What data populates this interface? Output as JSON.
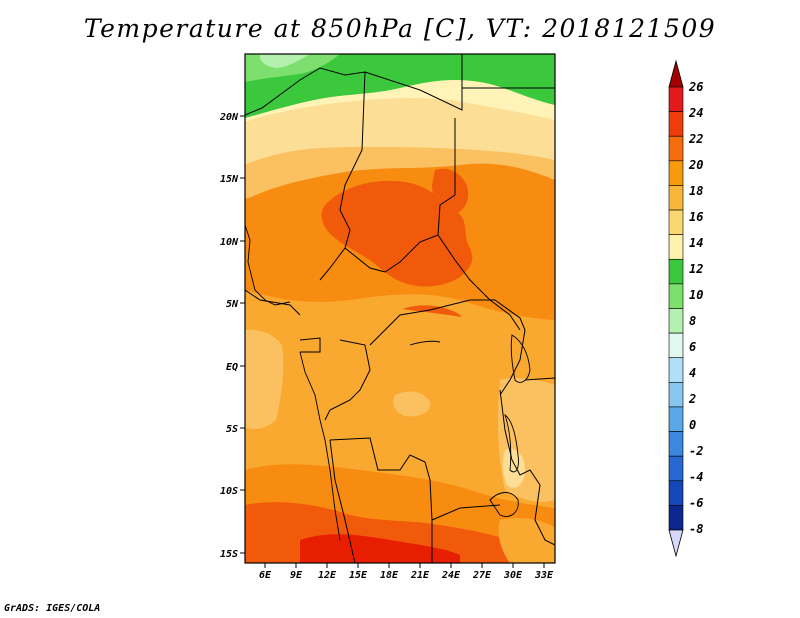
{
  "title": "Temperature at 850hPa [C], VT: 2018121509",
  "credit": "GrADS: IGES/COLA",
  "map": {
    "lat_labels": [
      "20N",
      "15N",
      "10N",
      "5N",
      "EQ",
      "5S",
      "10S",
      "15S"
    ],
    "lon_labels": [
      "6E",
      "9E",
      "12E",
      "15E",
      "18E",
      "21E",
      "24E",
      "27E",
      "30E",
      "33E"
    ]
  },
  "colorbar": {
    "labels": [
      "26",
      "24",
      "22",
      "20",
      "18",
      "16",
      "14",
      "12",
      "10",
      "8",
      "6",
      "4",
      "2",
      "0",
      "-2",
      "-4",
      "-6",
      "-8"
    ],
    "colors": [
      "#a50000",
      "#e31a1c",
      "#f03c0c",
      "#f46d0c",
      "#f79a0c",
      "#f8b63a",
      "#fbd774",
      "#fdf1ad",
      "#3cc83c",
      "#7de06e",
      "#b4f0b0",
      "#e0f8f0",
      "#b0e0f8",
      "#88c8f0",
      "#5aa8e8",
      "#3c88e0",
      "#2868d0",
      "#1448b8",
      "#0c2890",
      "#d8d8f8"
    ]
  },
  "colors": {
    "deep_red": "#e81e00",
    "red_orange": "#f05a0a",
    "orange": "#f78c10",
    "light_orange": "#f9a830",
    "pale_orange": "#fbc060",
    "light_yellow": "#fdde96",
    "pale_yellow": "#fff3b8",
    "green": "#3cc83c",
    "light_green": "#7de06e",
    "pale_green": "#b4f0b0"
  }
}
